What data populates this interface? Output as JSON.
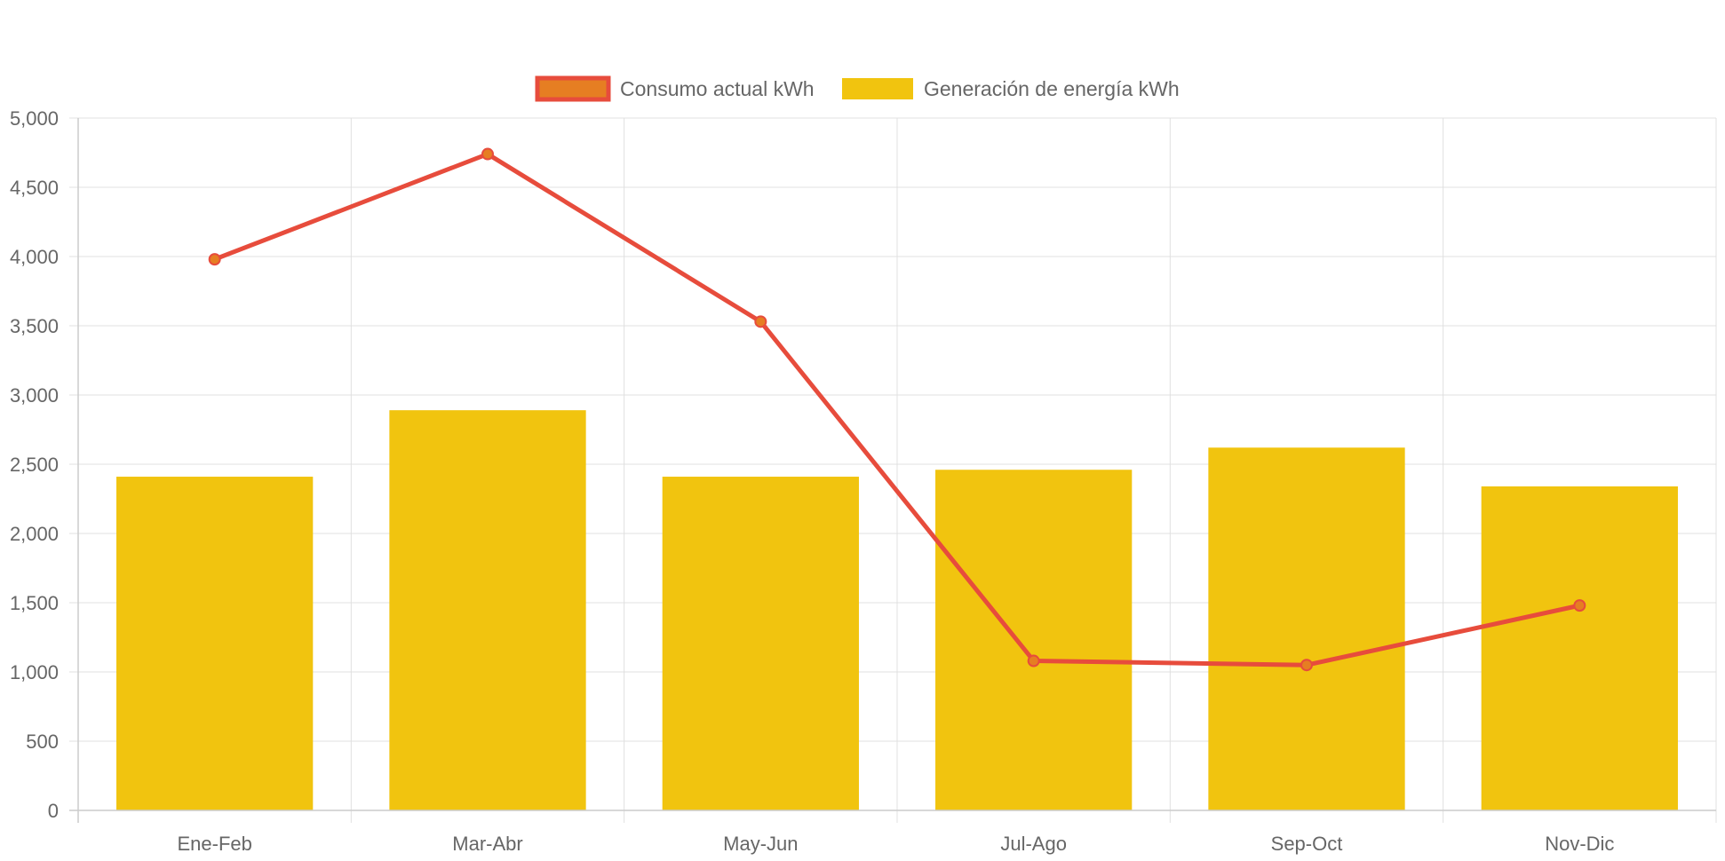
{
  "chart_data": {
    "type": "bar",
    "categories": [
      "Ene-Feb",
      "Mar-Abr",
      "May-Jun",
      "Jul-Ago",
      "Sep-Oct",
      "Nov-Dic"
    ],
    "series": [
      {
        "name": "Consumo actual kWh",
        "type": "line",
        "values": [
          3980,
          4740,
          3530,
          1080,
          1050,
          1480
        ],
        "line_color": "#e74c3c",
        "point_color": "#e67e22"
      },
      {
        "name": "Generación de energía kWh",
        "type": "bar",
        "values": [
          2410,
          2890,
          2410,
          2460,
          2620,
          2340
        ],
        "color": "#f1c40f"
      }
    ],
    "yticks": [
      "0",
      "500",
      "1,000",
      "1,500",
      "2,000",
      "2,500",
      "3,000",
      "3,500",
      "4,000",
      "4,500",
      "5,000"
    ],
    "ylim": [
      0,
      5000
    ],
    "ystep": 500,
    "grid": true,
    "legend_position": "top-center",
    "colors": {
      "grid": "#e0e0e0",
      "axis": "#cccccc",
      "text": "#666666"
    }
  }
}
